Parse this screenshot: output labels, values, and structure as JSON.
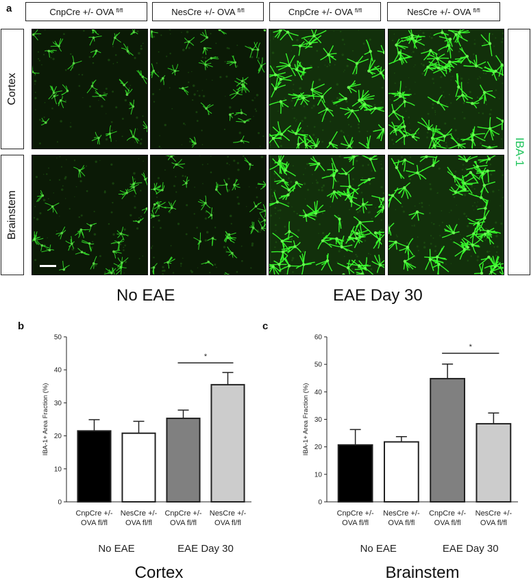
{
  "panel_a": {
    "letter": "a",
    "columns": [
      {
        "label": "CnpCre +/- OVA",
        "sup": "fl/fl"
      },
      {
        "label": "NesCre +/- OVA",
        "sup": "fl/fl"
      },
      {
        "label": "CnpCre +/- OVA",
        "sup": "fl/fl"
      },
      {
        "label": "NesCre +/- OVA",
        "sup": "fl/fl"
      }
    ],
    "rows": [
      "Cortex",
      "Brainstem"
    ],
    "stain": "IBA-1",
    "group_captions": [
      "No EAE",
      "EAE Day 30"
    ],
    "colors": {
      "stain": "#22c55e",
      "tissue_bg": "#0b1a06",
      "cell": "#39ff2e"
    }
  },
  "chart_data": [
    {
      "panel": "b",
      "type": "bar",
      "title": "Cortex",
      "ylabel": "IBA-1+ Area Fraction (%)",
      "ylim": [
        0,
        50
      ],
      "yticks": [
        0,
        10,
        20,
        30,
        40,
        50
      ],
      "categories": [
        [
          "CnpCre +/-",
          "OVA fl/fl"
        ],
        [
          "NesCre +/-",
          "OVA fl/fl"
        ],
        [
          "CnpCre +/-",
          "OVA fl/fl"
        ],
        [
          "NesCre +/-",
          "OVA fl/fl"
        ]
      ],
      "values": [
        21.5,
        20.8,
        25.3,
        35.5
      ],
      "errors": [
        3.4,
        3.6,
        2.5,
        3.7
      ],
      "bar_colors": [
        "#000000",
        "#ffffff",
        "#808080",
        "#cccccc"
      ],
      "groups": [
        "No EAE",
        "EAE Day 30"
      ],
      "significance": {
        "from": 2,
        "to": 3,
        "label": "*"
      }
    },
    {
      "panel": "c",
      "type": "bar",
      "title": "Brainstem",
      "ylabel": "IBA-1+ Area Fraction (%)",
      "ylim": [
        0,
        60
      ],
      "yticks": [
        0,
        10,
        20,
        30,
        40,
        50,
        60
      ],
      "categories": [
        [
          "CnpCre +/-",
          "OVA fl/fl"
        ],
        [
          "NesCre +/-",
          "OVA fl/fl"
        ],
        [
          "CnpCre +/-",
          "OVA fl/fl"
        ],
        [
          "NesCre +/-",
          "OVA fl/fl"
        ]
      ],
      "values": [
        20.7,
        21.8,
        44.8,
        28.4
      ],
      "errors": [
        5.6,
        1.9,
        5.3,
        3.9
      ],
      "bar_colors": [
        "#000000",
        "#ffffff",
        "#808080",
        "#cccccc"
      ],
      "groups": [
        "No EAE",
        "EAE Day 30"
      ],
      "significance": {
        "from": 2,
        "to": 3,
        "label": "*"
      }
    }
  ]
}
